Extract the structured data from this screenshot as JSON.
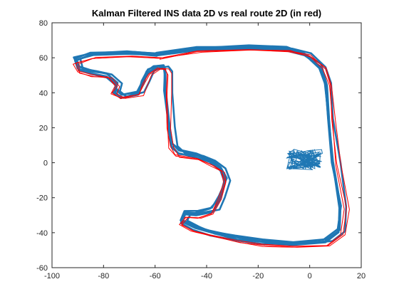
{
  "chart_data": {
    "type": "line",
    "title": "Kalman Filtered INS data 2D vs real route 2D (in red)",
    "xlabel": "",
    "ylabel": "",
    "xlim": [
      -100,
      20
    ],
    "ylim": [
      -60,
      80
    ],
    "xticks": [
      -100,
      -80,
      -60,
      -40,
      -20,
      0,
      20
    ],
    "yticks": [
      -60,
      -40,
      -20,
      0,
      20,
      40,
      60,
      80
    ],
    "grid": false,
    "legend": "none",
    "series": [
      {
        "color": "#ff0000",
        "laps": 3,
        "points": [
          [
            -60,
            61
          ],
          [
            -72,
            62
          ],
          [
            -86,
            61
          ],
          [
            -93,
            58
          ],
          [
            -92,
            53
          ],
          [
            -86,
            51
          ],
          [
            -80,
            50
          ],
          [
            -77,
            45
          ],
          [
            -78,
            41
          ],
          [
            -75,
            38
          ],
          [
            -68,
            40
          ],
          [
            -66,
            46
          ],
          [
            -64,
            52
          ],
          [
            -61,
            55
          ],
          [
            -58,
            55
          ],
          [
            -57,
            52
          ],
          [
            -57,
            40
          ],
          [
            -57,
            20
          ],
          [
            -56,
            10
          ],
          [
            -54,
            5
          ],
          [
            -45,
            3
          ],
          [
            -40,
            0
          ],
          [
            -36,
            -4
          ],
          [
            -35,
            -10
          ],
          [
            -37,
            -20
          ],
          [
            -40,
            -28
          ],
          [
            -45,
            -30
          ],
          [
            -50,
            -30
          ],
          [
            -52,
            -34
          ],
          [
            -47,
            -38
          ],
          [
            -40,
            -41
          ],
          [
            -30,
            -44
          ],
          [
            -20,
            -46
          ],
          [
            -8,
            -47
          ],
          [
            5,
            -46
          ],
          [
            11,
            -40
          ],
          [
            12,
            -25
          ],
          [
            9,
            0
          ],
          [
            7,
            25
          ],
          [
            6,
            45
          ],
          [
            4,
            55
          ],
          [
            -2,
            62
          ],
          [
            -10,
            65
          ],
          [
            -25,
            66
          ],
          [
            -45,
            65
          ],
          [
            -60,
            61
          ]
        ]
      },
      {
        "color": "#1f77b4",
        "laps": 5,
        "points": [
          [
            -60,
            62
          ],
          [
            -72,
            63
          ],
          [
            -86,
            62
          ],
          [
            -92,
            59
          ],
          [
            -91,
            54
          ],
          [
            -86,
            52
          ],
          [
            -80,
            50
          ],
          [
            -76,
            45
          ],
          [
            -77,
            41
          ],
          [
            -74,
            38
          ],
          [
            -68,
            40
          ],
          [
            -66,
            46
          ],
          [
            -64,
            52
          ],
          [
            -61,
            55
          ],
          [
            -58,
            55
          ],
          [
            -57,
            52
          ],
          [
            -57,
            40
          ],
          [
            -56,
            20
          ],
          [
            -55,
            10
          ],
          [
            -52,
            6
          ],
          [
            -45,
            4
          ],
          [
            -40,
            1
          ],
          [
            -36,
            -3
          ],
          [
            -34,
            -10
          ],
          [
            -36,
            -20
          ],
          [
            -39,
            -27
          ],
          [
            -45,
            -29
          ],
          [
            -50,
            -29
          ],
          [
            -51,
            -33
          ],
          [
            -46,
            -37
          ],
          [
            -40,
            -40
          ],
          [
            -30,
            -43
          ],
          [
            -20,
            -45
          ],
          [
            -8,
            -46
          ],
          [
            5,
            -45
          ],
          [
            10,
            -39
          ],
          [
            11,
            -25
          ],
          [
            8,
            0
          ],
          [
            6,
            25
          ],
          [
            5,
            45
          ],
          [
            3,
            55
          ],
          [
            -3,
            62
          ],
          [
            -10,
            65
          ],
          [
            -25,
            66
          ],
          [
            -45,
            65
          ],
          [
            -60,
            62
          ]
        ]
      }
    ],
    "cluster_center": [
      -2,
      2
    ]
  }
}
